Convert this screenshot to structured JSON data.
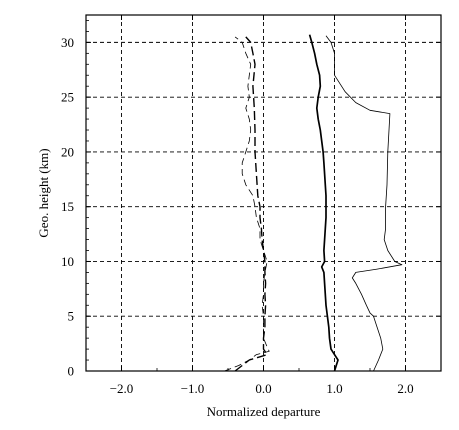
{
  "chart_data": {
    "type": "line",
    "title": "",
    "xlabel": "Normalized departure",
    "ylabel": "Geo.  height (km)",
    "xlim": [
      -2.5,
      2.5
    ],
    "ylim": [
      0,
      32.5
    ],
    "xticks": [
      -2.0,
      -1.0,
      0.0,
      1.0,
      2.0
    ],
    "xtick_labels": [
      "−2.0",
      "−1.0",
      "0.0",
      "1.0",
      "2.0"
    ],
    "yticks": [
      0,
      5,
      10,
      15,
      20,
      25,
      30
    ],
    "ytick_labels": [
      "0",
      "5",
      "10",
      "15",
      "20",
      "25",
      "30"
    ],
    "grid": true,
    "legend": "none",
    "series": [
      {
        "style": "thick-solid",
        "color": "#000000",
        "points": [
          [
            1.0,
            0
          ],
          [
            1.05,
            1
          ],
          [
            1.0,
            1.5
          ],
          [
            0.95,
            2
          ],
          [
            0.93,
            3
          ],
          [
            0.92,
            4
          ],
          [
            0.9,
            5
          ],
          [
            0.88,
            6
          ],
          [
            0.87,
            7
          ],
          [
            0.86,
            8
          ],
          [
            0.85,
            9
          ],
          [
            0.82,
            9.5
          ],
          [
            0.86,
            10
          ],
          [
            0.85,
            11
          ],
          [
            0.86,
            12
          ],
          [
            0.87,
            13
          ],
          [
            0.88,
            14
          ],
          [
            0.88,
            15
          ],
          [
            0.88,
            16
          ],
          [
            0.87,
            17
          ],
          [
            0.86,
            18
          ],
          [
            0.85,
            19
          ],
          [
            0.84,
            20
          ],
          [
            0.82,
            21
          ],
          [
            0.8,
            22
          ],
          [
            0.77,
            23
          ],
          [
            0.75,
            24
          ],
          [
            0.77,
            25
          ],
          [
            0.8,
            26
          ],
          [
            0.79,
            27
          ],
          [
            0.75,
            28
          ],
          [
            0.72,
            29
          ],
          [
            0.68,
            30
          ],
          [
            0.65,
            30.7
          ]
        ]
      },
      {
        "style": "thin-solid",
        "color": "#000000",
        "points": [
          [
            1.55,
            0
          ],
          [
            1.62,
            1
          ],
          [
            1.68,
            2
          ],
          [
            1.65,
            3
          ],
          [
            1.6,
            4
          ],
          [
            1.55,
            5
          ],
          [
            1.5,
            5.3
          ],
          [
            1.45,
            6
          ],
          [
            1.38,
            7
          ],
          [
            1.3,
            8
          ],
          [
            1.25,
            8.5
          ],
          [
            1.3,
            9
          ],
          [
            1.6,
            9.3
          ],
          [
            1.95,
            9.7
          ],
          [
            1.85,
            10
          ],
          [
            1.75,
            11
          ],
          [
            1.7,
            12
          ],
          [
            1.72,
            13
          ],
          [
            1.72,
            15
          ],
          [
            1.74,
            17
          ],
          [
            1.75,
            20
          ],
          [
            1.78,
            23.5
          ],
          [
            1.5,
            23.8
          ],
          [
            1.3,
            24.5
          ],
          [
            1.15,
            25.5
          ],
          [
            1.0,
            27
          ],
          [
            1.0,
            29
          ],
          [
            0.95,
            30
          ],
          [
            0.88,
            30.6
          ]
        ]
      },
      {
        "style": "thick-dashed",
        "color": "#000000",
        "points": [
          [
            -0.4,
            0
          ],
          [
            -0.3,
            0.5
          ],
          [
            -0.2,
            1
          ],
          [
            -0.05,
            1.3
          ],
          [
            0.05,
            1.5
          ],
          [
            0.0,
            2
          ],
          [
            0.0,
            3
          ],
          [
            0.02,
            4
          ],
          [
            0.02,
            5
          ],
          [
            0.03,
            6
          ],
          [
            0.02,
            7
          ],
          [
            0.03,
            8
          ],
          [
            0.02,
            9
          ],
          [
            0.02,
            10
          ],
          [
            0.0,
            11
          ],
          [
            -0.02,
            12
          ],
          [
            -0.03,
            13
          ],
          [
            -0.05,
            14
          ],
          [
            -0.05,
            15
          ],
          [
            -0.08,
            16
          ],
          [
            -0.1,
            18
          ],
          [
            -0.12,
            20
          ],
          [
            -0.12,
            22
          ],
          [
            -0.13,
            24
          ],
          [
            -0.15,
            26
          ],
          [
            -0.12,
            28
          ],
          [
            -0.15,
            29
          ],
          [
            -0.18,
            30
          ],
          [
            -0.25,
            30.5
          ]
        ]
      },
      {
        "style": "thin-dashed",
        "color": "#000000",
        "points": [
          [
            -0.55,
            0
          ],
          [
            -0.35,
            0.5
          ],
          [
            -0.2,
            1
          ],
          [
            -0.1,
            1.5
          ],
          [
            0.08,
            1.8
          ],
          [
            0.05,
            2.2
          ],
          [
            0.0,
            3
          ],
          [
            0.0,
            4
          ],
          [
            0.0,
            5
          ],
          [
            -0.02,
            6
          ],
          [
            0.0,
            7
          ],
          [
            0.0,
            8
          ],
          [
            0.02,
            9
          ],
          [
            0.05,
            10
          ],
          [
            0.0,
            11
          ],
          [
            -0.05,
            12
          ],
          [
            -0.05,
            13
          ],
          [
            -0.1,
            14
          ],
          [
            -0.12,
            15
          ],
          [
            -0.15,
            16
          ],
          [
            -0.25,
            17
          ],
          [
            -0.3,
            18
          ],
          [
            -0.3,
            19
          ],
          [
            -0.25,
            20
          ],
          [
            -0.2,
            21
          ],
          [
            -0.18,
            22
          ],
          [
            -0.2,
            23
          ],
          [
            -0.25,
            24
          ],
          [
            -0.2,
            25
          ],
          [
            -0.22,
            26
          ],
          [
            -0.2,
            27
          ],
          [
            -0.18,
            28
          ],
          [
            -0.25,
            29
          ],
          [
            -0.3,
            30
          ],
          [
            -0.4,
            30.5
          ]
        ]
      }
    ]
  }
}
